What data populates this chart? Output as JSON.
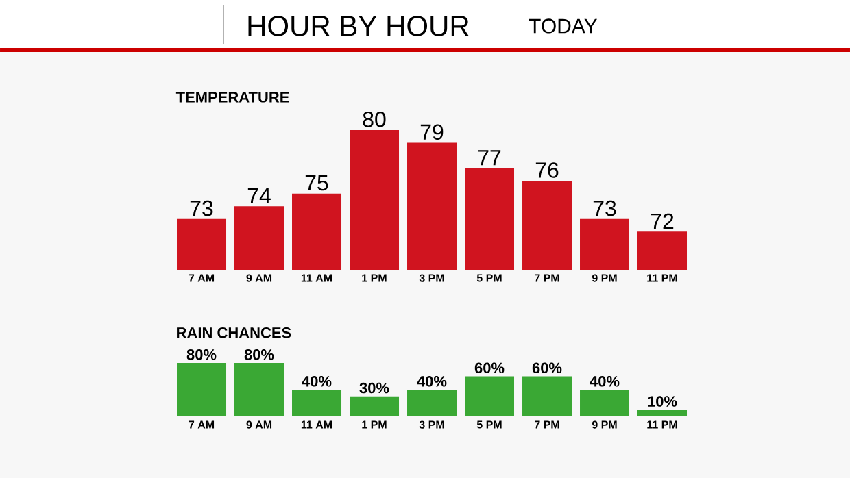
{
  "chart_data": [
    {
      "type": "other",
      "title": "HOUR BY HOUR",
      "subtitle": "TODAY"
    },
    {
      "type": "bar",
      "title": "TEMPERATURE",
      "categories": [
        "7 AM",
        "9 AM",
        "11 AM",
        "1 PM",
        "3 PM",
        "5 PM",
        "7 PM",
        "9 PM",
        "11 PM"
      ],
      "values": [
        73,
        74,
        75,
        80,
        79,
        77,
        76,
        73,
        72
      ],
      "color": "#d0141f",
      "ylim": [
        69,
        80
      ],
      "data_labels": true,
      "tick_labels": "x"
    },
    {
      "type": "bar",
      "title": "RAIN CHANCES",
      "categories": [
        "7 AM",
        "9 AM",
        "11 AM",
        "1 PM",
        "3 PM",
        "5 PM",
        "7 PM",
        "9 PM",
        "11 PM"
      ],
      "values": [
        80,
        80,
        40,
        30,
        40,
        60,
        60,
        40,
        10
      ],
      "value_labels": [
        "80%",
        "80%",
        "40%",
        "30%",
        "40%",
        "60%",
        "60%",
        "40%",
        "10%"
      ],
      "color": "#3aa834",
      "ylim": [
        0,
        80
      ],
      "tick_labels": "x"
    }
  ]
}
